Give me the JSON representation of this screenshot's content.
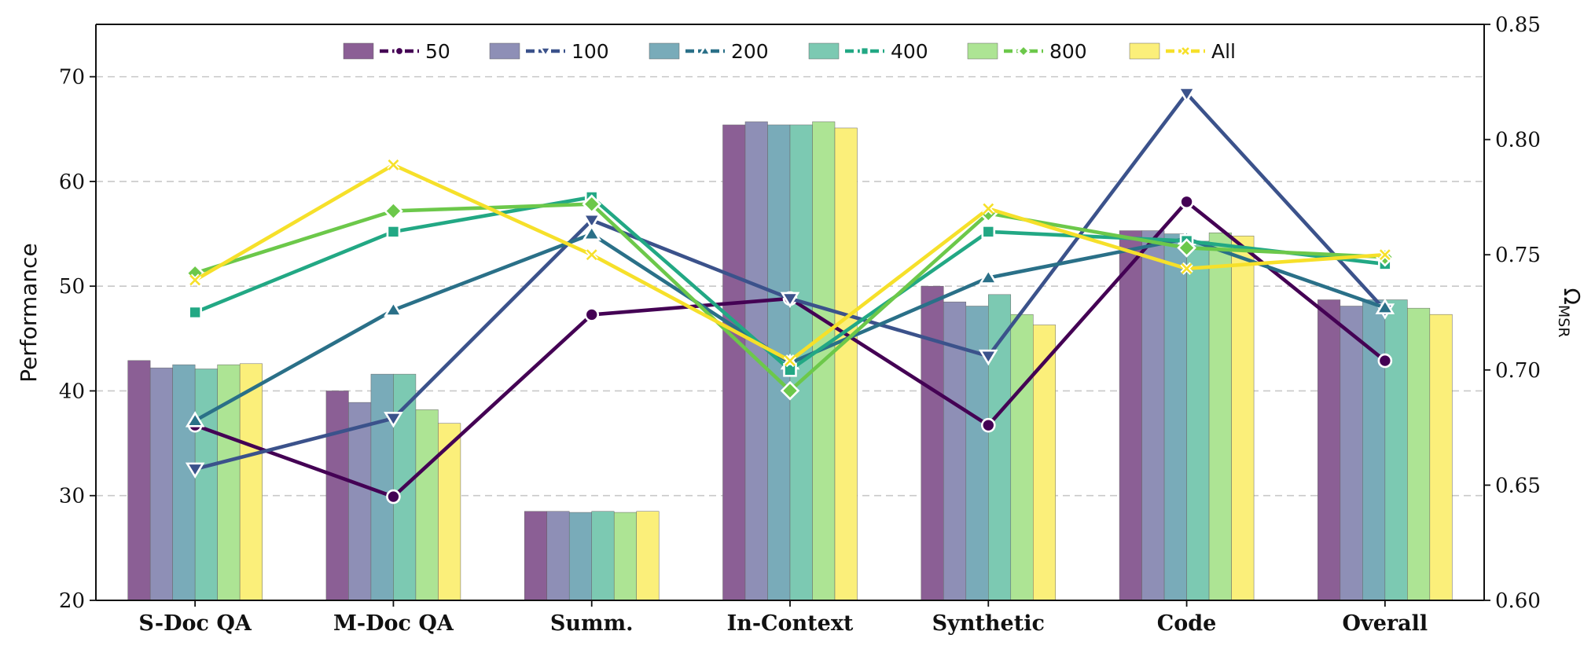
{
  "chart_data": {
    "type": "bar+line",
    "title": "",
    "categories": [
      "S-Doc QA",
      "M-Doc QA",
      "Summ.",
      "In-Context",
      "Synthetic",
      "Code",
      "Overall"
    ],
    "left_axis": {
      "label": "Performance",
      "ylim": [
        20,
        75
      ],
      "ticks": [
        20,
        30,
        40,
        50,
        60,
        70
      ]
    },
    "right_axis": {
      "label": "Ω",
      "label_sub": "MSR",
      "ylim": [
        0.6,
        0.85
      ],
      "ticks": [
        "0.60",
        "0.65",
        "0.70",
        "0.75",
        "0.80",
        "0.85"
      ]
    },
    "grid": "horizontal dashed",
    "legend_position": "top-center",
    "series": [
      {
        "name": "50",
        "color": "#440154",
        "bar_color": "#8b5f95",
        "marker": "circle",
        "bars": [
          42.9,
          40.0,
          28.5,
          65.4,
          50.0,
          55.3,
          48.7
        ],
        "line": [
          0.676,
          0.645,
          0.724,
          0.731,
          0.676,
          0.773,
          0.704
        ]
      },
      {
        "name": "100",
        "color": "#3b528b",
        "bar_color": "#8e8fb6",
        "marker": "triangle-down",
        "bars": [
          42.2,
          38.9,
          28.5,
          65.7,
          48.5,
          55.3,
          48.1
        ],
        "line": [
          0.657,
          0.679,
          0.765,
          0.731,
          0.706,
          0.82,
          0.726
        ]
      },
      {
        "name": "200",
        "color": "#21918c",
        "line_color": "#2a7088",
        "bar_color": "#79abb9",
        "marker": "triangle-up",
        "bars": [
          42.5,
          41.6,
          28.4,
          65.4,
          48.1,
          55.0,
          48.7
        ],
        "line": [
          0.678,
          0.726,
          0.759,
          0.703,
          0.74,
          0.757,
          0.727
        ]
      },
      {
        "name": "400",
        "color": "#22a884",
        "bar_color": "#7cc9b2",
        "marker": "square",
        "bars": [
          42.1,
          41.6,
          28.5,
          65.4,
          49.2,
          54.3,
          48.7
        ],
        "line": [
          0.725,
          0.76,
          0.775,
          0.7,
          0.76,
          0.756,
          0.746
        ]
      },
      {
        "name": "800",
        "color": "#7ad151",
        "line_color": "#6cc84a",
        "bar_color": "#ade494",
        "marker": "diamond",
        "bars": [
          42.5,
          38.2,
          28.4,
          65.7,
          47.3,
          55.1,
          47.9
        ],
        "line": [
          0.742,
          0.769,
          0.772,
          0.691,
          0.768,
          0.753,
          0.749
        ]
      },
      {
        "name": "All",
        "color": "#fde725",
        "line_color": "#f6e02a",
        "bar_color": "#fbef7a",
        "marker": "x",
        "bars": [
          42.6,
          36.9,
          28.5,
          65.1,
          46.3,
          54.8,
          47.3
        ],
        "line": [
          0.739,
          0.789,
          0.75,
          0.704,
          0.77,
          0.744,
          0.75
        ]
      }
    ]
  }
}
